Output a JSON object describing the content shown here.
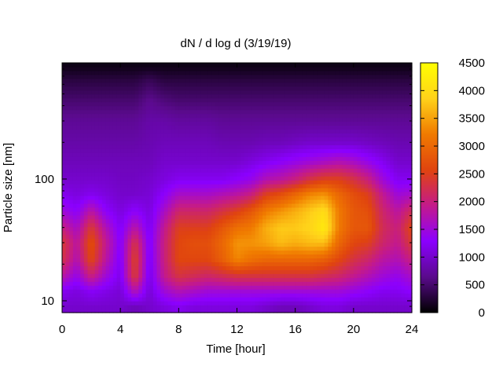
{
  "chart_data": {
    "type": "heatmap",
    "title": "dN / d log d (3/19/19)",
    "xlabel": "Time [hour]",
    "ylabel": "Particle size [nm]",
    "xlim": [
      0,
      24
    ],
    "ylim": [
      8,
      900
    ],
    "y_scale": "log",
    "x_ticks": [
      0,
      4,
      8,
      12,
      16,
      20,
      24
    ],
    "y_ticks": [
      10,
      100
    ],
    "x_tick_labels": [
      "0",
      "4",
      "8",
      "12",
      "16",
      "20",
      "24"
    ],
    "y_tick_labels": [
      "10",
      "100"
    ],
    "colorbar": {
      "range": [
        0,
        4500
      ],
      "ticks": [
        0,
        500,
        1000,
        1500,
        2000,
        2500,
        3000,
        3500,
        4000,
        4500
      ],
      "tick_labels": [
        "0",
        "500",
        "1000",
        "1500",
        "2000",
        "2500",
        "3000",
        "3500",
        "4000",
        "4500"
      ],
      "colormap": "gnuplot-pm3d",
      "colors": [
        "#000000",
        "#5a0a8c",
        "#8b00ff",
        "#c41a8a",
        "#e0440f",
        "#f07a00",
        "#ffd21a",
        "#ffff00"
      ]
    },
    "grid": false,
    "times": [
      0,
      1,
      2,
      3,
      4,
      5,
      6,
      7,
      8,
      9,
      10,
      11,
      12,
      13,
      14,
      15,
      16,
      17,
      18,
      19,
      20,
      21,
      22,
      23,
      24
    ],
    "sizes": [
      9,
      12,
      16,
      22,
      30,
      40,
      55,
      75,
      100,
      140,
      200,
      300,
      450,
      650,
      850
    ],
    "values": [
      [
        1000,
        1200,
        1800,
        2300,
        2400,
        2000,
        1500,
        1200,
        1000,
        900,
        800,
        700,
        500,
        300,
        100
      ],
      [
        1000,
        1100,
        1400,
        1700,
        1800,
        1600,
        1300,
        1100,
        1000,
        900,
        800,
        700,
        500,
        300,
        100
      ],
      [
        1000,
        1250,
        2000,
        2600,
        2700,
        2400,
        1800,
        1200,
        1000,
        900,
        800,
        700,
        500,
        300,
        100
      ],
      [
        1000,
        1150,
        1500,
        1800,
        1900,
        1700,
        1300,
        1100,
        1000,
        900,
        800,
        700,
        500,
        300,
        100
      ],
      [
        1000,
        1050,
        1150,
        1200,
        1250,
        1200,
        1100,
        1000,
        950,
        900,
        800,
        700,
        500,
        300,
        100
      ],
      [
        900,
        1700,
        2400,
        2500,
        2300,
        1800,
        1300,
        1000,
        950,
        900,
        800,
        700,
        500,
        300,
        100
      ],
      [
        1000,
        1050,
        1100,
        1150,
        1200,
        1150,
        1100,
        1050,
        1000,
        900,
        850,
        800,
        650,
        400,
        100
      ],
      [
        1100,
        1500,
        1900,
        2000,
        2000,
        1900,
        1600,
        1300,
        1100,
        1000,
        900,
        800,
        550,
        300,
        100
      ],
      [
        1200,
        1700,
        2300,
        2600,
        2600,
        2500,
        2100,
        1600,
        1200,
        1000,
        900,
        750,
        500,
        300,
        100
      ],
      [
        1100,
        1600,
        2200,
        2600,
        2700,
        2500,
        2100,
        1600,
        1200,
        1000,
        900,
        750,
        500,
        300,
        100
      ],
      [
        1100,
        1500,
        2100,
        2600,
        2700,
        2500,
        2100,
        1600,
        1200,
        1000,
        900,
        750,
        500,
        300,
        100
      ],
      [
        1100,
        1500,
        2200,
        2900,
        3000,
        2800,
        2300,
        1700,
        1200,
        1000,
        850,
        700,
        500,
        300,
        100
      ],
      [
        1100,
        1500,
        2300,
        3300,
        3400,
        3100,
        2500,
        1800,
        1300,
        1000,
        850,
        700,
        500,
        300,
        100
      ],
      [
        1100,
        1500,
        2300,
        3100,
        3400,
        3200,
        2800,
        2000,
        1400,
        1100,
        850,
        700,
        500,
        300,
        100
      ],
      [
        1000,
        1500,
        2300,
        3000,
        3500,
        3600,
        3200,
        2500,
        1700,
        1200,
        900,
        700,
        500,
        300,
        100
      ],
      [
        900,
        1500,
        2300,
        3000,
        3700,
        3800,
        3400,
        2700,
        1800,
        1300,
        900,
        700,
        500,
        300,
        100
      ],
      [
        900,
        1500,
        2300,
        3000,
        3600,
        3800,
        3600,
        3000,
        2000,
        1400,
        950,
        700,
        500,
        300,
        100
      ],
      [
        1000,
        1500,
        2300,
        3000,
        3700,
        3900,
        3800,
        3300,
        2300,
        1500,
        1000,
        700,
        500,
        300,
        100
      ],
      [
        1100,
        1500,
        2200,
        2900,
        3700,
        4200,
        4000,
        3400,
        2500,
        1600,
        1000,
        700,
        500,
        300,
        100
      ],
      [
        1100,
        1500,
        2100,
        2600,
        3000,
        3200,
        3200,
        3000,
        2500,
        1700,
        1000,
        700,
        500,
        300,
        100
      ],
      [
        1000,
        1400,
        1900,
        2300,
        2600,
        2800,
        2800,
        2700,
        2300,
        1600,
        1000,
        700,
        500,
        300,
        100
      ],
      [
        1000,
        1300,
        1700,
        2100,
        2500,
        2800,
        2700,
        2500,
        2000,
        1400,
        950,
        700,
        500,
        300,
        100
      ],
      [
        1000,
        1200,
        1500,
        1800,
        2100,
        2200,
        2100,
        1900,
        1500,
        1200,
        900,
        700,
        500,
        300,
        100
      ],
      [
        1000,
        1200,
        1400,
        1700,
        1900,
        2000,
        1800,
        1500,
        1200,
        1000,
        850,
        700,
        500,
        300,
        100
      ],
      [
        1000,
        1300,
        1600,
        2000,
        2400,
        2600,
        2200,
        1600,
        1200,
        1000,
        850,
        700,
        500,
        300,
        100
      ]
    ]
  }
}
